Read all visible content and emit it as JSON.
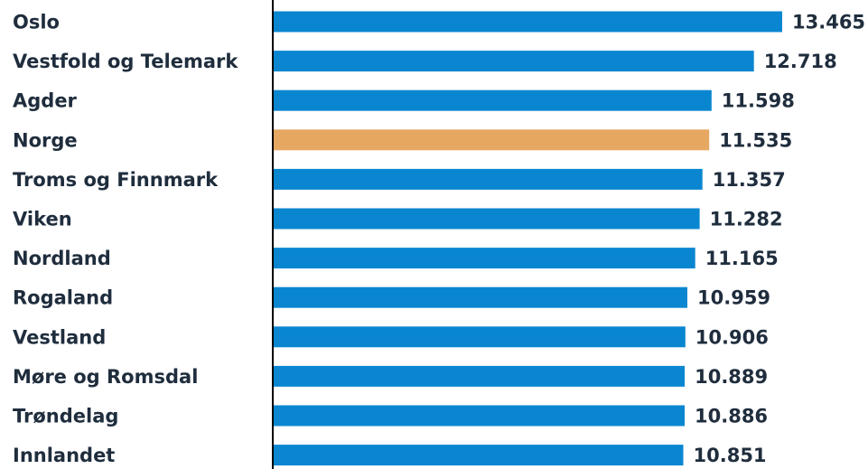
{
  "chart_data": {
    "type": "bar",
    "orientation": "horizontal",
    "title": "",
    "xlabel": "",
    "ylabel": "",
    "categories": [
      "Oslo",
      "Vestfold og Telemark",
      "Agder",
      "Norge",
      "Troms og Finnmark",
      "Viken",
      "Nordland",
      "Rogaland",
      "Vestland",
      "Møre og Romsdal",
      "Trøndelag",
      "Innlandet"
    ],
    "values": [
      13465,
      12718,
      11598,
      11535,
      11357,
      11282,
      11165,
      10959,
      10906,
      10889,
      10886,
      10851
    ],
    "value_labels": [
      "13.465",
      "12.718",
      "11.598",
      "11.535",
      "11.357",
      "11.282",
      "11.165",
      "10.959",
      "10.906",
      "10.889",
      "10.886",
      "10.851"
    ],
    "xlim": [
      0,
      13465
    ],
    "grid": false,
    "legend": "none",
    "colors": {
      "default_bar": "#0a86d1",
      "highlight_bar": "#e6a761",
      "highlight_category": "Norge",
      "axis": "#000000",
      "text": "#1f2d3d"
    }
  }
}
